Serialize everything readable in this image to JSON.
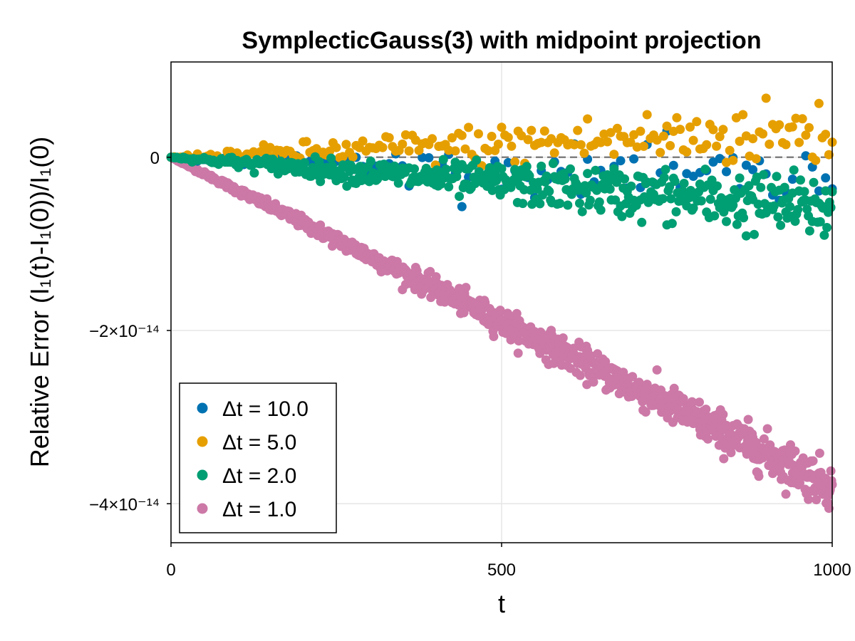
{
  "chart_data": {
    "type": "scatter",
    "title": "SymplecticGauss(3) with midpoint projection",
    "xlabel": "t",
    "ylabel": "Relative Error (I₁(t)-I₁(0))/I₁(0)",
    "xlim": [
      0,
      1000
    ],
    "ylim": [
      -4.45e-14,
      1.1e-14
    ],
    "x_ticks": [
      {
        "value": 0,
        "label": "0"
      },
      {
        "value": 500,
        "label": "500"
      },
      {
        "value": 1000,
        "label": "1000"
      }
    ],
    "y_ticks": [
      {
        "value": 0,
        "label": "0"
      },
      {
        "value": -2e-14,
        "label": "−2×10⁻¹⁴"
      },
      {
        "value": -4e-14,
        "label": "−4×10⁻¹⁴"
      }
    ],
    "grid": true,
    "reference_line": {
      "y": 0,
      "style": "dashed",
      "color": "#808080"
    },
    "legend_position": "bottom-left",
    "series": [
      {
        "name": "Δt = 10.0",
        "dt": 10,
        "color": "#0072b2",
        "trend_end": -3e-15,
        "spread": 3.5e-15
      },
      {
        "name": "Δt = 5.0",
        "dt": 5,
        "color": "#e69f00",
        "trend_end": 3e-15,
        "spread": 3.5e-15
      },
      {
        "name": "Δt = 2.0",
        "dt": 2,
        "color": "#009e73",
        "trend_end": -6e-15,
        "spread": 3.2e-15
      },
      {
        "name": "Δt = 1.0",
        "dt": 1,
        "color": "#cc79a7",
        "trend_end": -3.8e-14,
        "spread": 2.2e-15
      }
    ],
    "draw_order": [
      3,
      0,
      1,
      2
    ]
  }
}
